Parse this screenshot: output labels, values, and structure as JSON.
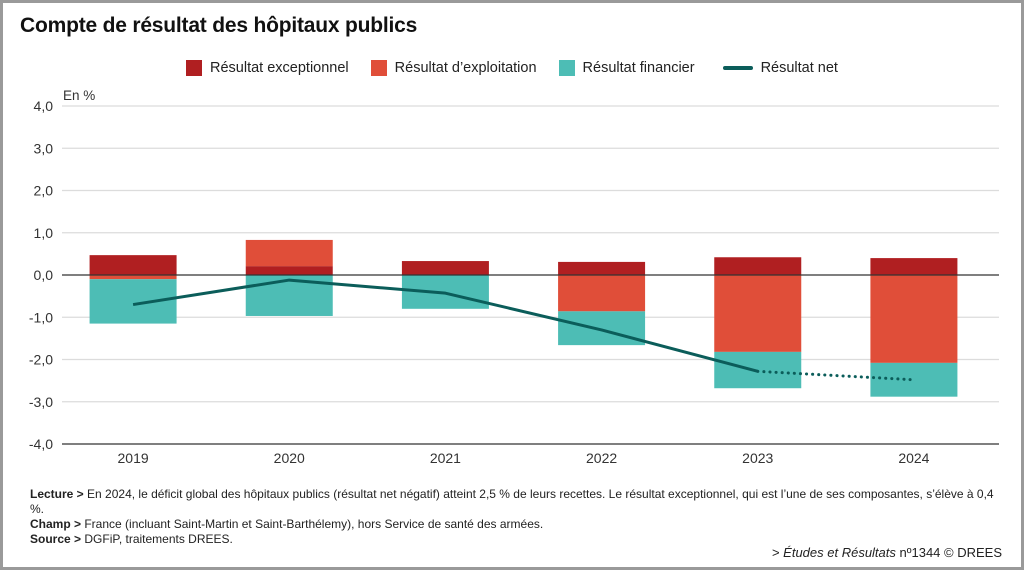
{
  "title": "Compte de résultat des hôpitaux publics",
  "unit_label": "En %",
  "legend": [
    {
      "key": "exceptionnel",
      "label": "Résultat exceptionnel",
      "color": "#B01F21",
      "kind": "swatch"
    },
    {
      "key": "exploitation",
      "label": "Résultat d’exploitation",
      "color": "#E04E39",
      "kind": "swatch"
    },
    {
      "key": "financier",
      "label": "Résultat financier",
      "color": "#4DBDB5",
      "kind": "swatch"
    },
    {
      "key": "net",
      "label": "Résultat net",
      "color": "#0B5D5A",
      "kind": "line"
    }
  ],
  "chart_data": {
    "type": "bar",
    "stacked": true,
    "title": "Compte de résultat des hôpitaux publics",
    "xlabel": "",
    "ylabel": "En %",
    "ylim": [
      -4.0,
      4.0
    ],
    "yticks": [
      4.0,
      3.0,
      2.0,
      1.0,
      0.0,
      -1.0,
      -2.0,
      -3.0,
      -4.0
    ],
    "ytick_labels": [
      "4,0",
      "3,0",
      "2,0",
      "1,0",
      "0,0",
      "-1,0",
      "-2,0",
      "-3,0",
      "-4,0"
    ],
    "grid": true,
    "legend_position": "top",
    "categories": [
      "2019",
      "2020",
      "2021",
      "2022",
      "2023",
      "2024"
    ],
    "series": [
      {
        "name": "Résultat exceptionnel",
        "type": "bar",
        "color": "#B01F21",
        "values": [
          0.47,
          0.21,
          0.33,
          0.31,
          0.42,
          0.4
        ]
      },
      {
        "name": "Résultat d’exploitation",
        "type": "bar",
        "color": "#E04E39",
        "values": [
          -0.1,
          0.62,
          0.0,
          -0.86,
          -1.82,
          -2.08
        ]
      },
      {
        "name": "Résultat financier",
        "type": "bar",
        "color": "#4DBDB5",
        "values": [
          -1.05,
          -0.97,
          -0.8,
          -0.8,
          -0.86,
          -0.8
        ]
      },
      {
        "name": "Résultat net",
        "type": "line",
        "color": "#0B5D5A",
        "values": [
          -0.7,
          -0.12,
          -0.43,
          -1.3,
          -2.28,
          -2.48
        ],
        "dotted_from_index": 4
      }
    ]
  },
  "notes": {
    "lecture_label": "Lecture >",
    "lecture_text": " En 2024, le déficit global des hôpitaux publics (résultat net négatif) atteint 2,5 % de leurs recettes. Le résultat exceptionnel, qui est l’une de ses composantes, s’élève à 0,4 %.",
    "champ_label": "Champ >",
    "champ_text": " France (incluant Saint-Martin et Saint-Barthélemy), hors Service de santé des armées.",
    "source_label": "Source >",
    "source_text": " DGFiP, traitements DREES."
  },
  "credit": {
    "prefix": "> ",
    "publication": "Études et Résultats",
    "suffix": " nº1344 © DREES"
  }
}
